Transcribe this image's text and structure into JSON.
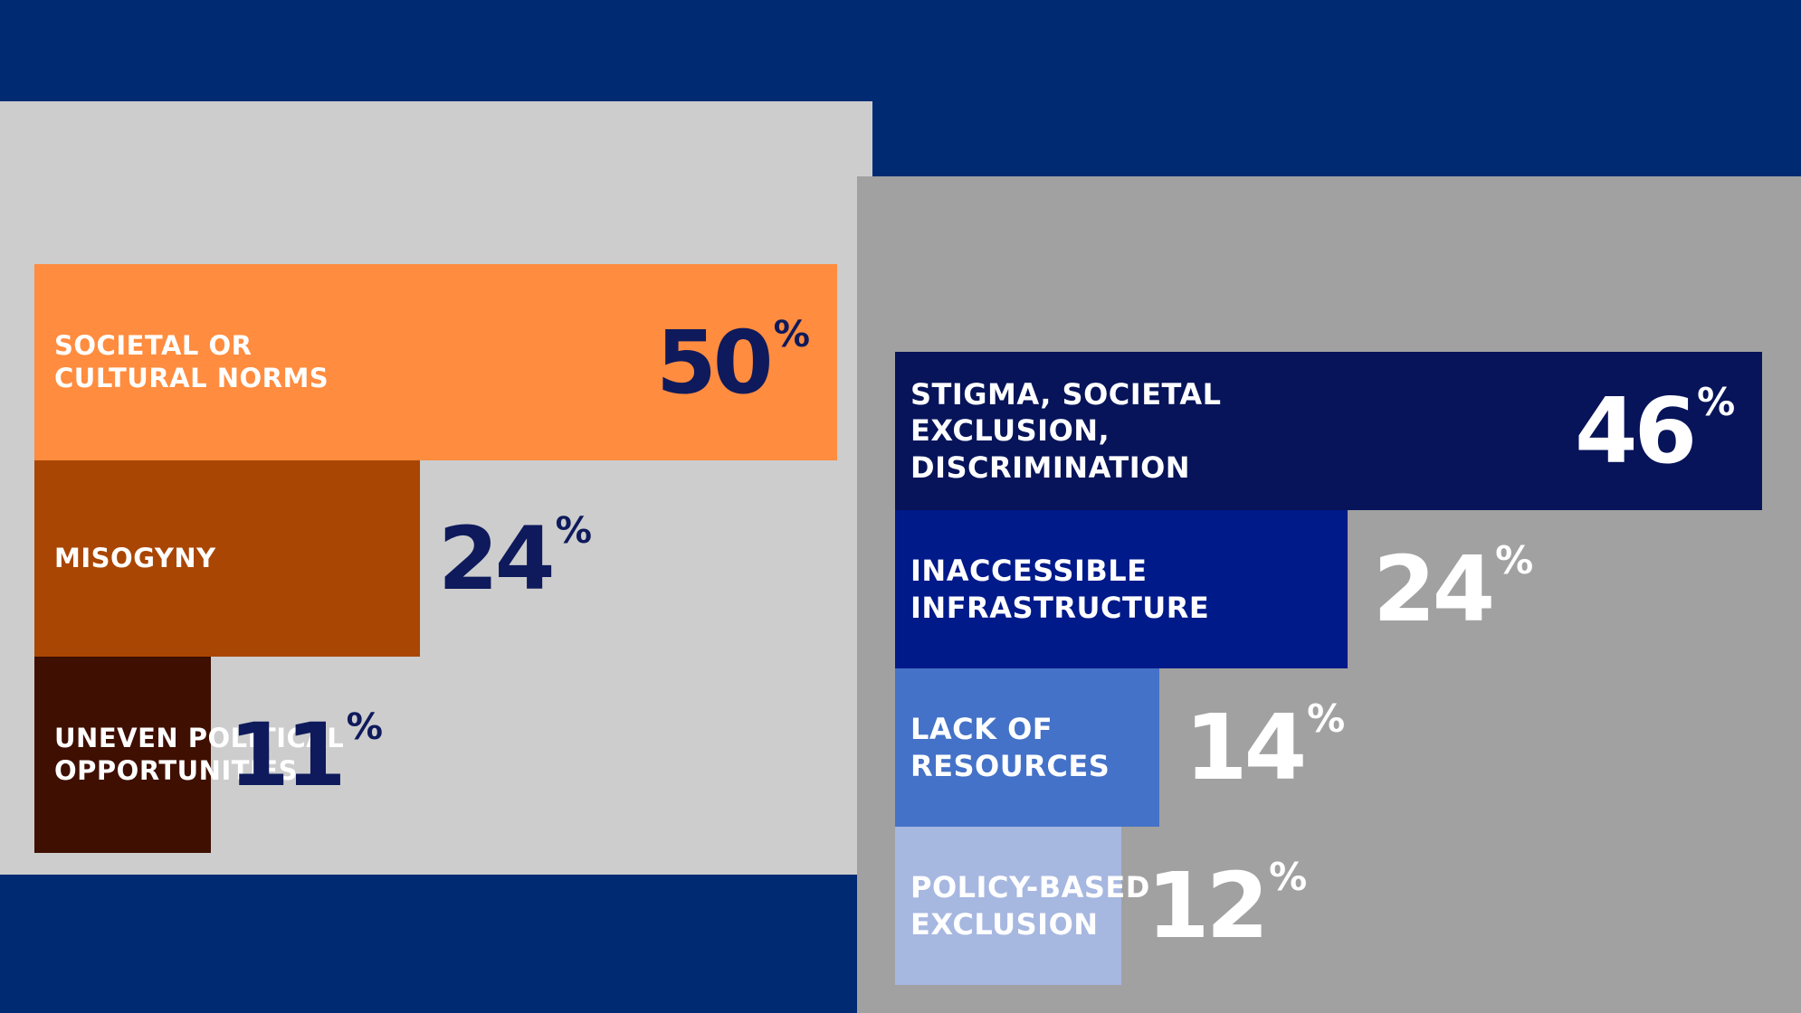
{
  "chart_data": [
    {
      "type": "bar",
      "orientation": "horizontal",
      "panel_color": "#cdcdcd",
      "value_color": "#0e1a5c",
      "categories": [
        "Societal or Cultural Norms",
        "Misogyny",
        "Uneven Political Opportunities"
      ],
      "labels": [
        "SOCIETAL OR\nCULTURAL NORMS",
        "MISOGYNY",
        "UNEVEN POLITICAL\nOPPORTUNITIES"
      ],
      "values": [
        50,
        24,
        11
      ],
      "value_labels": [
        "50",
        "24",
        "11"
      ],
      "unit": "%",
      "colors": [
        "#ff8c3f",
        "#a94603",
        "#3f0f02"
      ],
      "xlim": [
        0,
        50
      ],
      "grid": false
    },
    {
      "type": "bar",
      "orientation": "horizontal",
      "panel_color": "#a1a1a1",
      "value_color": "#ffffff",
      "categories": [
        "Stigma, Societal Exclusion, Discrimination",
        "Inaccessible Infrastructure",
        "Lack of Resources",
        "Policy-based Exclusion"
      ],
      "labels": [
        "STIGMA, SOCIETAL\nEXCLUSION,\nDISCRIMINATION",
        "INACCESSIBLE\nINFRASTRUCTURE",
        "LACK OF\nRESOURCES",
        "POLICY-BASED\nEXCLUSION"
      ],
      "values": [
        46,
        24,
        14,
        12
      ],
      "value_labels": [
        "46",
        "24",
        "14",
        "12"
      ],
      "unit": "%",
      "colors": [
        "#07145a",
        "#001a8a",
        "#4472c8",
        "#a6b7e0"
      ],
      "xlim": [
        0,
        46
      ],
      "grid": false
    }
  ],
  "colors": {
    "background": "#002b73"
  }
}
